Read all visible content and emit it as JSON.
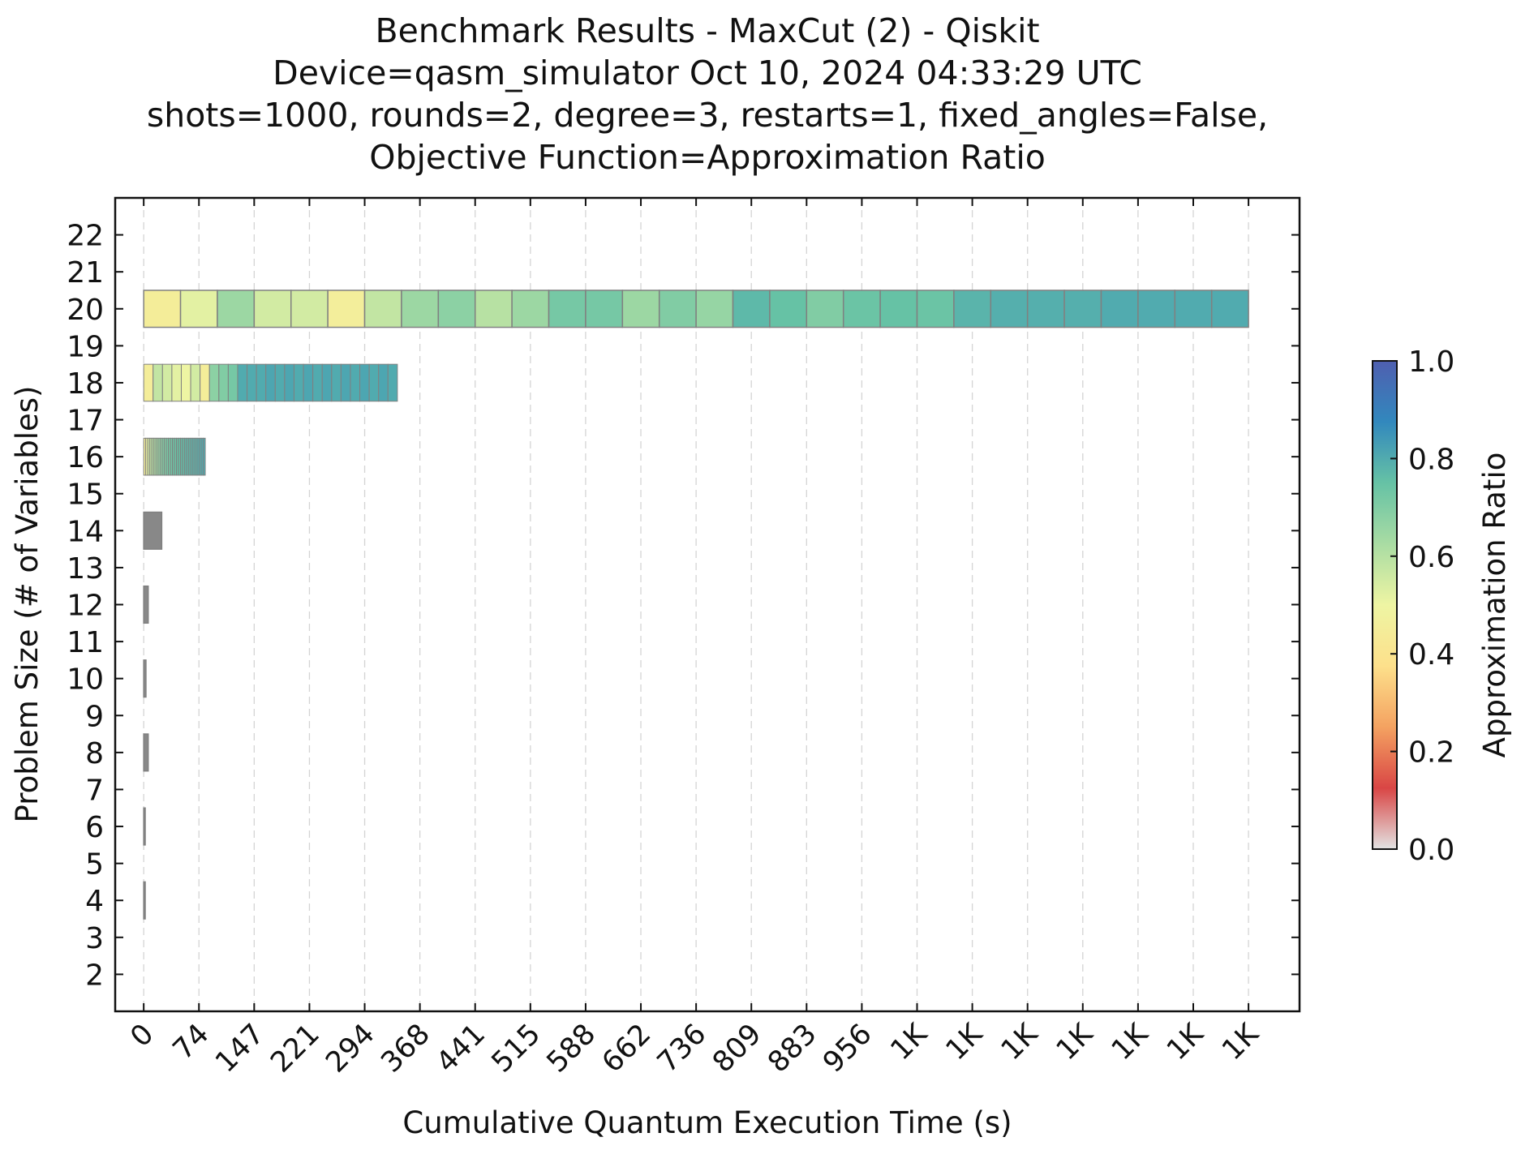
{
  "chart_data": {
    "type": "heatmap",
    "title_lines": [
      "Benchmark Results - MaxCut (2) - Qiskit",
      "Device=qasm_simulator  Oct 10, 2024 04:33:29 UTC",
      "shots=1000, rounds=2, degree=3, restarts=1, fixed_angles=False,",
      "Objective Function=Approximation Ratio"
    ],
    "xlabel": "Cumulative Quantum Execution Time (s)",
    "ylabel": "Problem Size (# of Variables)",
    "colorbar_label": "Approximation Ratio",
    "xlim": [
      -38,
      1540
    ],
    "ylim": [
      1,
      23
    ],
    "x_ticks": [
      0,
      73.6,
      147.2,
      220.8,
      294.4,
      368,
      441.6,
      515.2,
      588.8,
      662.4,
      736,
      809.6,
      883.2,
      956.8,
      1030.4,
      1104,
      1177.6,
      1251.2,
      1324.8,
      1398.4,
      1472
    ],
    "x_tick_labels": [
      "0",
      "74",
      "147",
      "221",
      "294",
      "368",
      "441",
      "515",
      "588",
      "662",
      "736",
      "809",
      "883",
      "956",
      "1K",
      "1K",
      "1K",
      "1K",
      "1K",
      "1K",
      "1K"
    ],
    "y_ticks": [
      2,
      3,
      4,
      5,
      6,
      7,
      8,
      9,
      10,
      11,
      12,
      13,
      14,
      15,
      16,
      17,
      18,
      19,
      20,
      21,
      22
    ],
    "colorbar_ticks": [
      "0.0",
      "0.2",
      "0.4",
      "0.6",
      "0.8",
      "1.0"
    ],
    "colorbar_range": [
      0,
      1
    ],
    "colormap": [
      "#e3e3e3",
      "#d94645",
      "#f4a261",
      "#fde08b",
      "#eef5a3",
      "#a9dca3",
      "#66c2a5",
      "#3288bd",
      "#4f5fb0"
    ],
    "bar_height": 1,
    "edge_color": "#808080",
    "grid": "vertical dashed",
    "rows": [
      {
        "size": 4,
        "x_end": 2,
        "segments": 1,
        "values": []
      },
      {
        "size": 6,
        "x_end": 2,
        "segments": 1,
        "values": []
      },
      {
        "size": 8,
        "x_end": 6,
        "segments": 1,
        "values": []
      },
      {
        "size": 10,
        "x_end": 3,
        "segments": 1,
        "values": []
      },
      {
        "size": 12,
        "x_end": 6,
        "segments": 1,
        "values": []
      },
      {
        "size": 14,
        "x_end": 24,
        "segments": 1,
        "values": []
      },
      {
        "size": 16,
        "x_end": 82,
        "segments": 30,
        "values": [
          0.45,
          0.5,
          0.55,
          0.58,
          0.6,
          0.62,
          0.64,
          0.66,
          0.68,
          0.7,
          0.7,
          0.72,
          0.72,
          0.73,
          0.74,
          0.74,
          0.75,
          0.75,
          0.76,
          0.76,
          0.77,
          0.77,
          0.77,
          0.78,
          0.78,
          0.78,
          0.79,
          0.79,
          0.8,
          0.8
        ]
      },
      {
        "size": 18,
        "x_end": 338,
        "segments": 27,
        "values": [
          0.45,
          0.58,
          0.55,
          0.52,
          0.5,
          0.55,
          0.45,
          0.68,
          0.7,
          0.72,
          0.8,
          0.8,
          0.8,
          0.81,
          0.8,
          0.81,
          0.8,
          0.81,
          0.8,
          0.81,
          0.8,
          0.81,
          0.8,
          0.81,
          0.8,
          0.81,
          0.8
        ]
      },
      {
        "size": 20,
        "x_end": 1472,
        "segments": 30,
        "values": [
          0.45,
          0.52,
          0.65,
          0.55,
          0.55,
          0.46,
          0.58,
          0.65,
          0.68,
          0.6,
          0.65,
          0.72,
          0.72,
          0.65,
          0.7,
          0.66,
          0.77,
          0.75,
          0.7,
          0.74,
          0.75,
          0.74,
          0.78,
          0.79,
          0.79,
          0.79,
          0.8,
          0.8,
          0.8,
          0.8
        ]
      }
    ]
  }
}
